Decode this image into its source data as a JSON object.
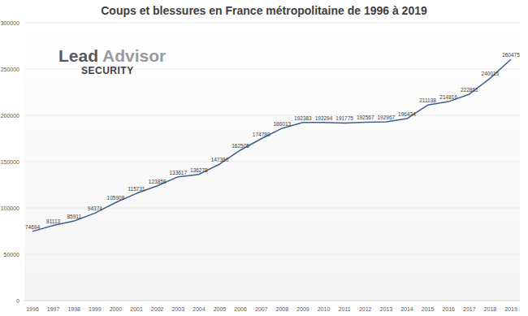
{
  "chart_data": {
    "type": "line",
    "title": "Coups et blessures en France métropolitaine de 1996 à 2019",
    "annotations": [
      "Lead",
      "Advisor",
      "SECURITY"
    ],
    "categories": [
      "1996",
      "1997",
      "1998",
      "1999",
      "2000",
      "2001",
      "2002",
      "2003",
      "2004",
      "2005",
      "2006",
      "2007",
      "2008",
      "2009",
      "2010",
      "2011",
      "2012",
      "2013",
      "2014",
      "2015",
      "2016",
      "2017",
      "2018",
      "2019"
    ],
    "values": [
      74694,
      81113,
      85911,
      94374,
      105908,
      115731,
      123858,
      133617,
      136278,
      147380,
      162505,
      174780,
      186013,
      192383,
      192294,
      191775,
      192567,
      192967,
      196434,
      211138,
      214816,
      222861,
      240015,
      260475
    ],
    "color": "#3f5f8f",
    "ylim": [
      0,
      300000
    ],
    "yticks": [
      0,
      50000,
      100000,
      150000,
      200000,
      250000,
      300000
    ],
    "grid": true,
    "data_labels": true
  }
}
